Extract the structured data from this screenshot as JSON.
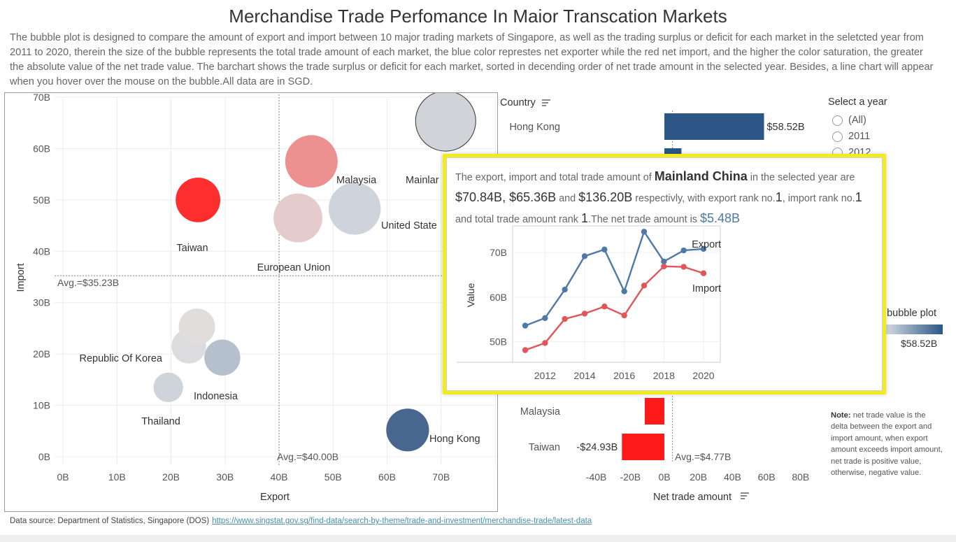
{
  "title": "Merchandise Trade Perfomance In Maior Transcation Markets",
  "description": "The bubble plot is designed to compare the amount of export and import between 10 major trading markets of Singapore, as well as the trading surplus or deficit for each market in the seletcted year from 2011 to 2020, therein the size of the bubble represents the total trade amount of each market, the blue color represtes net exporter while the red net import, and the higher the color saturation, the greater the absolute value of the net trade value. The barchart shows the trade surplus or deficit for each market, sorted in decending order of net trade amount in the selected year. Besides, a line chart will appear when you hover over the mouse on the bubble.All data are in SGD.",
  "colors": {
    "exporter_strong": "#2b5686",
    "importer_strong": "#ff2a2a",
    "neutral": "#d0d5dc",
    "export_line": "#4e79a7",
    "import_line": "#e15759",
    "tooltip_border": "#f2ec1c"
  },
  "chart_data": [
    {
      "type": "scatter",
      "name": "bubble",
      "xlabel": "Export",
      "ylabel": "Import",
      "xlim": [
        0,
        80
      ],
      "ylim": [
        0,
        70
      ],
      "x_ticks": [
        "0B",
        "10B",
        "20B",
        "30B",
        "40B",
        "50B",
        "60B",
        "70B"
      ],
      "y_ticks": [
        "0B",
        "10B",
        "20B",
        "30B",
        "40B",
        "50B",
        "60B",
        "70B"
      ],
      "avg_x": 40.0,
      "avg_x_label": "Avg.=$40.00B",
      "avg_y": 35.23,
      "avg_y_label": "Avg.=$35.23B",
      "grid": true,
      "points": [
        {
          "label": "Mainland China",
          "shown_label": "Mainlar",
          "x": 70.84,
          "y": 65.36,
          "color": "#d0d3d8",
          "size": 136.2,
          "outlined": true
        },
        {
          "label": "Malaysia",
          "x": 46,
          "y": 57.5,
          "color": "#ec9090",
          "size": 103.5
        },
        {
          "label": "United States",
          "shown_label": "United State",
          "x": 54,
          "y": 48.3,
          "color": "#cfd4dc",
          "size": 102.3
        },
        {
          "label": "Taiwan",
          "x": 25,
          "y": 50,
          "color": "#ff2e2e",
          "size": 75
        },
        {
          "label": "European Union",
          "x": 43.5,
          "y": 46.5,
          "color": "#e4cccc",
          "size": 90
        },
        {
          "label": "Republic Of Korea",
          "x": 23.3,
          "y": 21.5,
          "color": "#dcdcdf",
          "size": 44.8
        },
        {
          "label": "",
          "x": 24.8,
          "y": 25.3,
          "color": "#e2dddd",
          "size": 50.1
        },
        {
          "label": "Indonesia",
          "x": 29.5,
          "y": 19.3,
          "color": "#b5c0cd",
          "size": 48.8
        },
        {
          "label": "Thailand",
          "x": 19.5,
          "y": 13.5,
          "color": "#cfd4db",
          "size": 33
        },
        {
          "label": "Hong Kong",
          "x": 63.8,
          "y": 5.2,
          "color": "#48678e",
          "size": 69
        }
      ]
    },
    {
      "type": "bar",
      "name": "net trade",
      "category_header": "Country",
      "xlabel": "Net trade amount",
      "x_ticks": [
        "-40B",
        "-20B",
        "0B",
        "20B",
        "40B",
        "60B",
        "80B"
      ],
      "xlim": [
        -50,
        90
      ],
      "avg": 4.77,
      "avg_label": "Avg.=$4.77B",
      "categories": [
        "Hong Kong",
        "",
        "Malaysia",
        "Taiwan"
      ],
      "values": [
        58.52,
        10,
        -11.5,
        -24.93
      ],
      "value_labels": [
        "$58.52B",
        "",
        "",
        "-$24.93B"
      ]
    },
    {
      "type": "line",
      "name": "tooltip",
      "ylabel": "Value",
      "x": [
        2011,
        2012,
        2013,
        2014,
        2015,
        2016,
        2017,
        2018,
        2019,
        2020
      ],
      "x_ticks": [
        "2012",
        "2014",
        "2016",
        "2018",
        "2020"
      ],
      "y_ticks": [
        "50B",
        "60B",
        "70B"
      ],
      "ylim": [
        46,
        76
      ],
      "series": [
        {
          "name": "Export",
          "values": [
            53.6,
            55.3,
            61.7,
            69.2,
            70.7,
            61.3,
            74.7,
            68.0,
            70.5,
            70.84
          ]
        },
        {
          "name": "Import",
          "values": [
            48.1,
            49.7,
            55.1,
            56.3,
            57.9,
            55.9,
            62.6,
            66.9,
            66.8,
            65.36
          ]
        }
      ]
    }
  ],
  "year_filter": {
    "title": "Select a year",
    "options": [
      "(All)",
      "2011",
      "2012"
    ]
  },
  "legend": {
    "title": "n bubble plot",
    "max_label": "$58.52B"
  },
  "note": {
    "bold": "Note:",
    "text": " net trade value is the delta between the export and import amount, when export amount exceeds import amount, net trade is positive value, otherwise, negative value."
  },
  "tooltip": {
    "t1": "The export, import and total trade amount of ",
    "market": "Mainland China",
    "t2": " in the selected year are ",
    "export": "$70.84B",
    "t3": ", ",
    "import": "$65.36B",
    "t4": " and ",
    "total": "$136.20B",
    "t5": " respectivly, with export rank no.",
    "rank_export": "1",
    "t6": ", import rank no.",
    "rank_import": "1",
    "t7": " and total trade amount rank ",
    "rank_total": "1",
    "t8": ".The net trade amount is ",
    "net": "$5.48B"
  },
  "footer": {
    "text": "Data source: Department of Statistics, Singapore (DOS)",
    "link": "https://www.singstat.gov.sg/find-data/search-by-theme/trade-and-investment/merchandise-trade/latest-data"
  }
}
